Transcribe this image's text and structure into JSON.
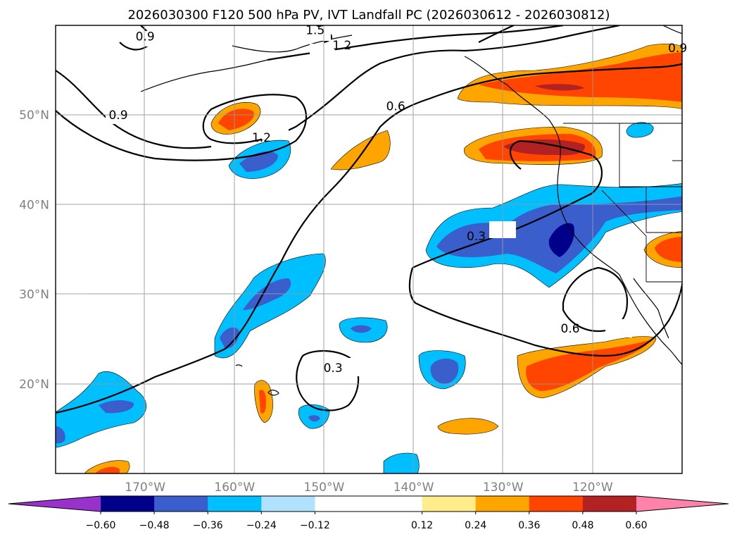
{
  "chart_data": {
    "type": "contour-map",
    "title": "2026030300 F120 500 hPa PV, IVT Landfall PC (2026030612 - 2026030812)",
    "projection": "PlateCarree",
    "extent": {
      "lon": [
        -180,
        -110
      ],
      "lat": [
        10,
        60
      ]
    },
    "lon_ticks": [
      {
        "lon": -170,
        "label": "170°W"
      },
      {
        "lon": -160,
        "label": "160°W"
      },
      {
        "lon": -150,
        "label": "150°W"
      },
      {
        "lon": -140,
        "label": "140°W"
      },
      {
        "lon": -130,
        "label": "130°W"
      },
      {
        "lon": -120,
        "label": "120°W"
      }
    ],
    "lat_ticks": [
      {
        "lat": 20,
        "label": "20°N"
      },
      {
        "lat": 30,
        "label": "30°N"
      },
      {
        "lat": 40,
        "label": "40°N"
      },
      {
        "lat": 50,
        "label": "50°N"
      }
    ],
    "colorbar": {
      "levels": [
        -0.6,
        -0.48,
        -0.36,
        -0.24,
        -0.12,
        0.12,
        0.24,
        0.36,
        0.48,
        0.6
      ],
      "tick_labels": [
        "−0.60",
        "−0.48",
        "−0.36",
        "−0.24",
        "−0.12",
        "0.12",
        "0.24",
        "0.36",
        "0.48",
        "0.60"
      ],
      "colors": [
        "#9932cc",
        "#00008b",
        "#3a5fcd",
        "#00bfff",
        "#b0e2ff",
        "#ffffff",
        "#ffec8b",
        "#ffa500",
        "#ff4500",
        "#b22222",
        "#ff82ab"
      ],
      "extend": "both"
    },
    "pv_contour_labels": [
      {
        "text": "0.9",
        "lon": -170,
        "lat": 58.8
      },
      {
        "text": "1.5",
        "lon": -151,
        "lat": 59.5
      },
      {
        "text": "1.2",
        "lon": -148,
        "lat": 57.8
      },
      {
        "text": "0.9",
        "lon": -173,
        "lat": 50
      },
      {
        "text": "0.6",
        "lon": -142,
        "lat": 51
      },
      {
        "text": "1.2",
        "lon": -157,
        "lat": 47.5
      },
      {
        "text": "0.3",
        "lon": -133,
        "lat": 36.5
      },
      {
        "text": "0.6",
        "lon": -122.5,
        "lat": 26.2
      },
      {
        "text": "0.3",
        "lon": -149,
        "lat": 21.8
      },
      {
        "text": "0.9",
        "lon": -110.5,
        "lat": 57.5
      }
    ],
    "ivt_pc_anomalies": [
      {
        "sign": "positive",
        "max": 0.48,
        "lon": -125,
        "lat": 54
      },
      {
        "sign": "positive",
        "max": 0.48,
        "lon": -126,
        "lat": 46
      },
      {
        "sign": "positive",
        "max": 0.36,
        "lon": -160,
        "lat": 50
      },
      {
        "sign": "positive",
        "max": 0.24,
        "lon": -145,
        "lat": 45
      },
      {
        "sign": "negative",
        "min": -0.36,
        "lon": -158,
        "lat": 45
      },
      {
        "sign": "negative",
        "min": -0.6,
        "lon": -126,
        "lat": 36
      },
      {
        "sign": "negative",
        "min": -0.36,
        "lon": -136,
        "lat": 35
      },
      {
        "sign": "positive",
        "max": 0.36,
        "lon": -111.5,
        "lat": 35
      },
      {
        "sign": "negative",
        "min": -0.12,
        "lon": -117,
        "lat": 48
      },
      {
        "sign": "negative",
        "min": -0.36,
        "lon": -155,
        "lat": 30.5
      },
      {
        "sign": "negative",
        "min": -0.36,
        "lon": -160.5,
        "lat": 25
      },
      {
        "sign": "negative",
        "min": -0.36,
        "lon": -146,
        "lat": 25.5
      },
      {
        "sign": "negative",
        "min": -0.36,
        "lon": -137.5,
        "lat": 21
      },
      {
        "sign": "positive",
        "max": 0.36,
        "lon": -123,
        "lat": 21.5
      },
      {
        "sign": "positive",
        "max": 0.36,
        "lon": -156.5,
        "lat": 17.5
      },
      {
        "sign": "negative",
        "min": -0.36,
        "lon": -151,
        "lat": 16.5
      },
      {
        "sign": "positive",
        "max": 0.24,
        "lon": -136.5,
        "lat": 15.5
      },
      {
        "sign": "negative",
        "min": -0.36,
        "lon": -174.5,
        "lat": 17
      },
      {
        "sign": "negative",
        "min": -0.24,
        "lon": -178,
        "lat": 14
      },
      {
        "sign": "negative",
        "min": -0.24,
        "lon": -140.5,
        "lat": 11
      },
      {
        "sign": "positive",
        "max": 0.36,
        "lon": -172,
        "lat": 10.5
      }
    ]
  }
}
